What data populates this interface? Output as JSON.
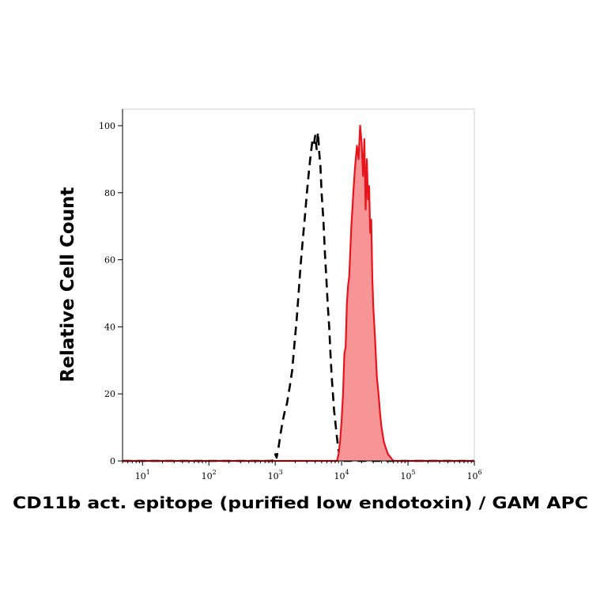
{
  "chart_data": {
    "type": "area",
    "xlabel": "CD11b act. epitope (purified low endotoxin) / GAM APC",
    "ylabel": "Relative Cell Count",
    "xscale": "log",
    "xlim": [
      5,
      1000000
    ],
    "ylim": [
      0,
      100
    ],
    "yticks": [
      0,
      20,
      40,
      60,
      80,
      100
    ],
    "xticks": [
      {
        "value": 10,
        "base": "10",
        "exp": "1"
      },
      {
        "value": 100,
        "base": "10",
        "exp": "2"
      },
      {
        "value": 1000,
        "base": "10",
        "exp": "3"
      },
      {
        "value": 10000,
        "base": "10",
        "exp": "4"
      },
      {
        "value": 100000,
        "base": "10",
        "exp": "5"
      },
      {
        "value": 1000000,
        "base": "10",
        "exp": "6"
      }
    ],
    "grid": false,
    "legend": "none",
    "series": [
      {
        "style": "dashed",
        "color": "#000000",
        "fill": "none",
        "x": [
          5,
          900,
          950,
          1000,
          1050,
          1120,
          1200,
          1300,
          1400,
          1500,
          1650,
          1800,
          1950,
          2100,
          2250,
          2400,
          2600,
          2800,
          3000,
          3200,
          3400,
          3600,
          3800,
          4000,
          4200,
          4400,
          4600,
          4800,
          5000,
          5300,
          5600,
          5900,
          6200,
          6500,
          6800,
          7100,
          7400,
          7700,
          8000,
          8500,
          9000,
          9500,
          10000,
          1000000
        ],
        "y": [
          0,
          0,
          1,
          2,
          1,
          4,
          8,
          12,
          15,
          17,
          22,
          27,
          35,
          42,
          50,
          58,
          66,
          73,
          80,
          86,
          91,
          95,
          94,
          97,
          93,
          98,
          92,
          88,
          80,
          72,
          62,
          54,
          46,
          40,
          32,
          25,
          20,
          15,
          12,
          7,
          3,
          1,
          0,
          0
        ]
      },
      {
        "style": "solid",
        "color": "#e8141b",
        "fill": "#f79496",
        "x": [
          5,
          8500,
          9000,
          9500,
          10000,
          10500,
          11000,
          11500,
          12000,
          12500,
          13000,
          13500,
          14000,
          14500,
          15000,
          16000,
          17000,
          18000,
          19000,
          20000,
          21000,
          22000,
          23000,
          24000,
          25000,
          26000,
          27000,
          28000,
          29000,
          30000,
          32000,
          34000,
          36000,
          38000,
          40000,
          43000,
          46000,
          50000,
          55000,
          60000,
          70000,
          80000,
          1000000
        ],
        "y": [
          0,
          0,
          2,
          6,
          12,
          20,
          32,
          34,
          47,
          52,
          55,
          62,
          70,
          75,
          80,
          88,
          94,
          90,
          100,
          95,
          85,
          96,
          75,
          90,
          78,
          82,
          68,
          72,
          55,
          46,
          36,
          25,
          20,
          14,
          10,
          6,
          4,
          2,
          1,
          0,
          0,
          0,
          0
        ]
      }
    ]
  }
}
